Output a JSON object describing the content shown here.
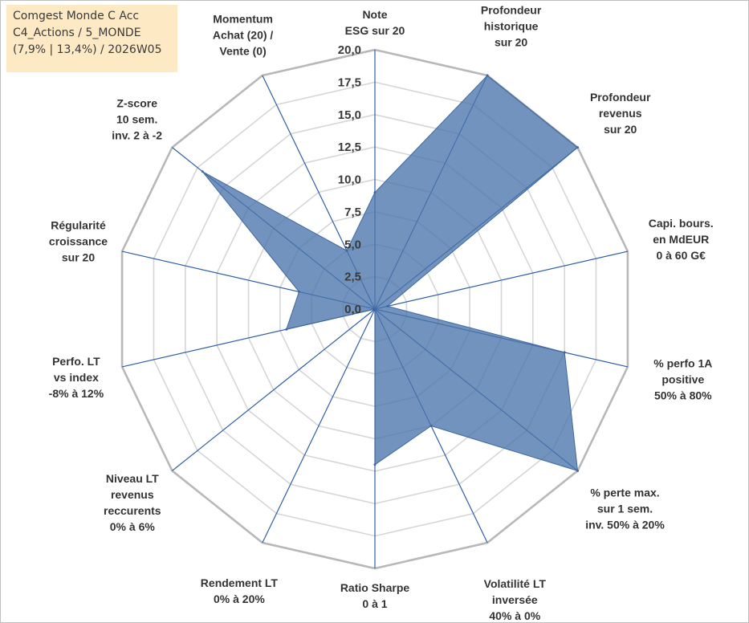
{
  "info_box": {
    "line1": "Comgest Monde C Acc",
    "line2": "C4_Actions / 5_MONDE",
    "line3": "(7,9% | 13,4%) / 2026W05"
  },
  "colors": {
    "fill": "#4a74ab",
    "grid": "#c0c0c0",
    "spoke": "#2f5fa8"
  },
  "chart_data": {
    "type": "radar",
    "title": "",
    "r_range": [
      0,
      20
    ],
    "grid": true,
    "tick_values": [
      0,
      2.5,
      5,
      7.5,
      10,
      12.5,
      15,
      17.5,
      20
    ],
    "tick_labels": [
      "0,0",
      "2,5",
      "5,0",
      "7,5",
      "10,0",
      "12,5",
      "15,0",
      "17,5",
      "20,0"
    ],
    "axes": [
      {
        "label": [
          "Note",
          "ESG sur 20"
        ],
        "value": 9
      },
      {
        "label": [
          "Profondeur",
          "historique",
          "sur 20"
        ],
        "value": 20
      },
      {
        "label": [
          "Profondeur",
          "revenus",
          "sur 20"
        ],
        "value": 20
      },
      {
        "label": [
          "Capi. bours.",
          "en MdEUR",
          "0 à 60 G€"
        ],
        "value": 1
      },
      {
        "label": [
          "% perfo 1A",
          "positive",
          "50% à 80%"
        ],
        "value": 15
      },
      {
        "label": [
          "% perte max.",
          "sur 1 sem.",
          "inv. 50% à 20%"
        ],
        "value": 20
      },
      {
        "label": [
          "Volatilité LT",
          "inversée",
          "40% à 0%"
        ],
        "value": 10
      },
      {
        "label": [
          "Ratio Sharpe",
          "0 à 1"
        ],
        "value": 12
      },
      {
        "label": [
          "Rendement LT",
          "0% à 20%"
        ],
        "value": 0
      },
      {
        "label": [
          "Niveau LT",
          "revenus",
          "reccurents",
          "0% à 6%"
        ],
        "value": 0
      },
      {
        "label": [
          "Perfo. LT",
          "vs index",
          "-8% à 12%"
        ],
        "value": 7
      },
      {
        "label": [
          "Régularité",
          "croissance",
          "sur 20"
        ],
        "value": 6
      },
      {
        "label": [
          "Z-score",
          "10 sem.",
          "inv. 2 à -2"
        ],
        "value": 17
      },
      {
        "label": [
          "Momentum",
          "Achat (20) /",
          "Vente (0)"
        ],
        "value": 5
      }
    ]
  }
}
